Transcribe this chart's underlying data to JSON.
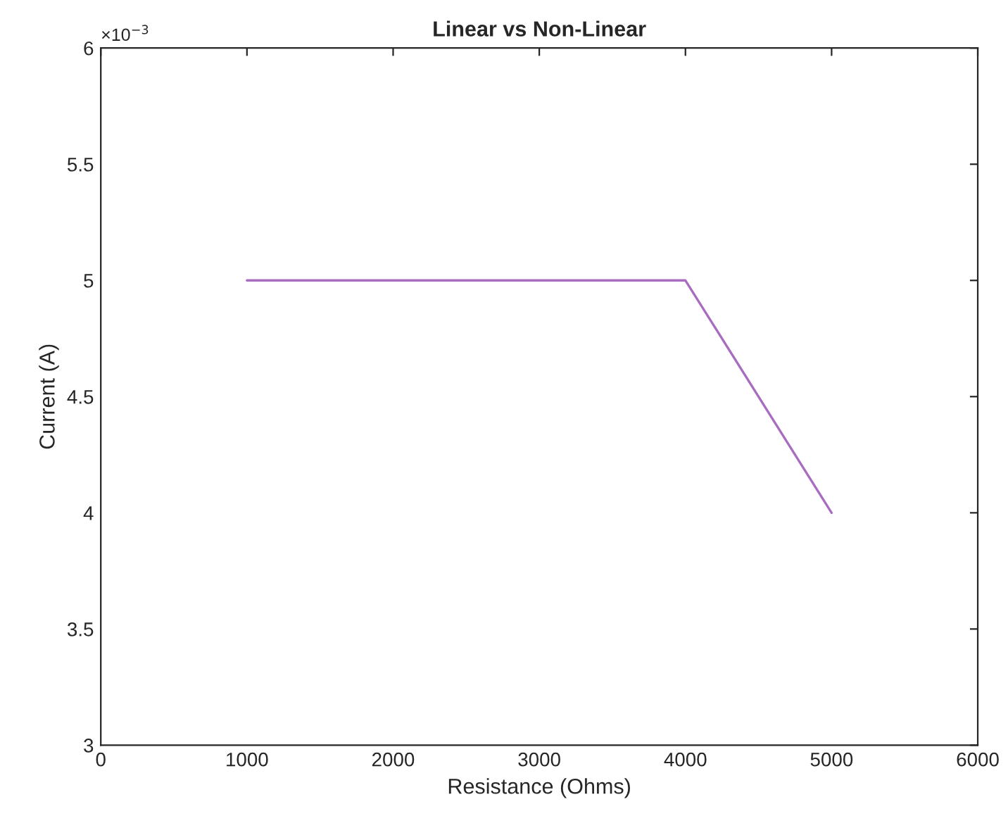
{
  "chart_data": {
    "type": "line",
    "title": "Linear vs Non-Linear",
    "xlabel": "Resistance (Ohms)",
    "ylabel": "Current (A)",
    "x": [
      1000,
      4000,
      5000
    ],
    "series": [
      {
        "color": "#a86cc1",
        "values": [
          5,
          5,
          4
        ]
      }
    ],
    "xlim": [
      0,
      6000
    ],
    "xticks": [
      0,
      1000,
      2000,
      3000,
      4000,
      5000,
      6000
    ],
    "ylim": [
      3,
      6
    ],
    "yticks": [
      3,
      3.5,
      4,
      4.5,
      5,
      5.5,
      6
    ],
    "annotations": [
      "×10$^{−3}$"
    ],
    "grid": false,
    "marker": "none",
    "line_style": "solid"
  }
}
